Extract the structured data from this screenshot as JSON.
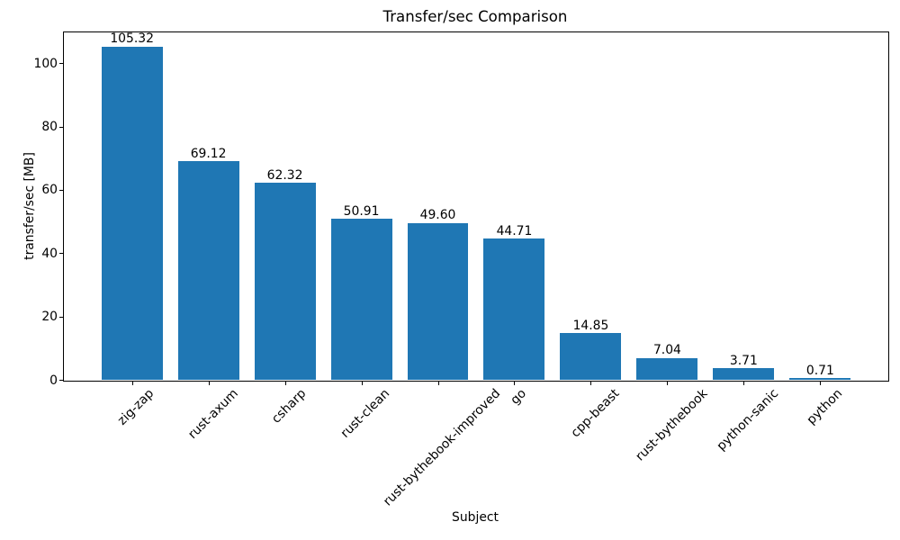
{
  "chart_data": {
    "type": "bar",
    "title": "Transfer/sec Comparison",
    "xlabel": "Subject",
    "ylabel": "transfer/sec [MB]",
    "categories": [
      "zig-zap",
      "rust-axum",
      "csharp",
      "rust-clean",
      "rust-bythebook-improved",
      "go",
      "cpp-beast",
      "rust-bythebook",
      "python-sanic",
      "python"
    ],
    "values": [
      105.32,
      69.12,
      62.32,
      50.91,
      49.6,
      44.71,
      14.85,
      7.04,
      3.71,
      0.71
    ],
    "bar_value_labels": [
      "105.32",
      "69.12",
      "62.32",
      "50.91",
      "49.60",
      "44.71",
      "14.85",
      "7.04",
      "3.71",
      "0.71"
    ],
    "ylim": [
      0,
      110
    ],
    "yticks": [
      "0",
      "20",
      "40",
      "60",
      "80",
      "100"
    ],
    "ytick_values": [
      0,
      20,
      40,
      60,
      80,
      100
    ],
    "xtick_rotation_deg": 45,
    "grid": false,
    "bar_color": "#1f77b4",
    "text_color": "#000000",
    "axis_color": "#000000",
    "background_color": "#ffffff"
  }
}
